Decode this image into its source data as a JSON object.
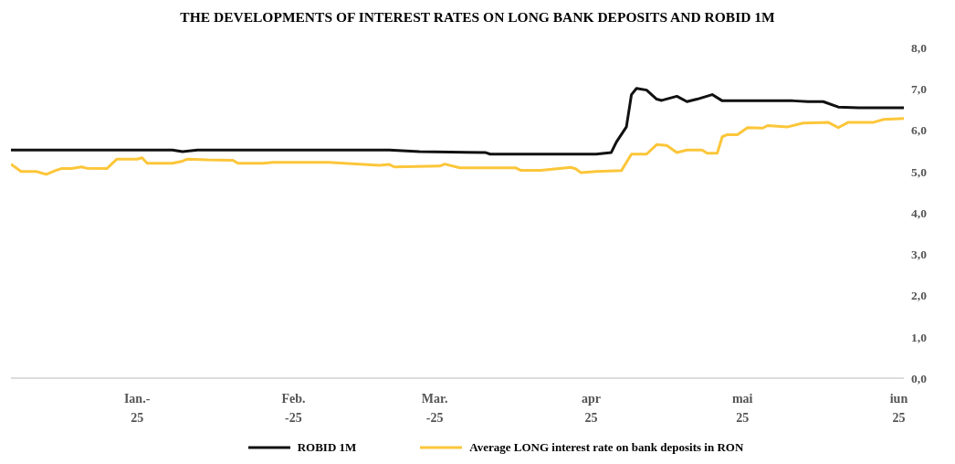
{
  "chart_data": {
    "type": "line",
    "title": "THE DEVELOPMENTS OF INTEREST RATES ON LONG BANK DEPOSITS AND ROBID 1M",
    "xlim": [
      "2024-12-07",
      "2025-06-02"
    ],
    "xticks": [
      {
        "value": "2025-01-01",
        "label": "Ian.-\n25"
      },
      {
        "value": "2025-02-01",
        "label": "Feb.\n-25"
      },
      {
        "value": "2025-03-01",
        "label": "Mar.\n-25"
      },
      {
        "value": "2025-04-01",
        "label": "apr\n25"
      },
      {
        "value": "2025-05-01",
        "label": "mai\n25"
      },
      {
        "value": "2025-06-01",
        "label": "iun\n25"
      }
    ],
    "ylim": [
      0,
      8
    ],
    "yticks": [
      {
        "value": 0,
        "label": "0,0"
      },
      {
        "value": 1,
        "label": "1,0"
      },
      {
        "value": 2,
        "label": "2,0"
      },
      {
        "value": 3,
        "label": "3,0"
      },
      {
        "value": 4,
        "label": "4,0"
      },
      {
        "value": 5,
        "label": "5,0"
      },
      {
        "value": 6,
        "label": "6,0"
      },
      {
        "value": 7,
        "label": "7,0"
      },
      {
        "value": 8,
        "label": "8,0"
      }
    ],
    "grid": false,
    "legend": "bottom",
    "marker": "none",
    "line_style": "solid",
    "series": [
      {
        "name": "ROBID 1M",
        "color": "#111111",
        "x": [
          "2024-12-07",
          "2025-01-08",
          "2025-01-10",
          "2025-01-13",
          "2025-02-20",
          "2025-02-26",
          "2025-03-11",
          "2025-03-12",
          "2025-04-02",
          "2025-04-05",
          "2025-04-06",
          "2025-04-08",
          "2025-04-09",
          "2025-04-10",
          "2025-04-12",
          "2025-04-14",
          "2025-04-15",
          "2025-04-18",
          "2025-04-20",
          "2025-04-22",
          "2025-04-25",
          "2025-04-27",
          "2025-05-11",
          "2025-05-14",
          "2025-05-17",
          "2025-05-20",
          "2025-05-24",
          "2025-06-02"
        ],
        "values": [
          5.52,
          5.52,
          5.48,
          5.52,
          5.52,
          5.48,
          5.46,
          5.42,
          5.42,
          5.46,
          5.71,
          6.08,
          6.86,
          7.01,
          6.97,
          6.75,
          6.72,
          6.82,
          6.69,
          6.75,
          6.86,
          6.71,
          6.71,
          6.69,
          6.69,
          6.56,
          6.54,
          6.54
        ]
      },
      {
        "name": "Average LONG interest rate on bank deposits in RON",
        "color": "#fcc63a",
        "x": [
          "2024-12-07",
          "2024-12-09",
          "2024-12-12",
          "2024-12-14",
          "2024-12-16",
          "2024-12-17",
          "2024-12-19",
          "2024-12-21",
          "2024-12-22",
          "2024-12-26",
          "2024-12-28",
          "2025-01-01",
          "2025-01-02",
          "2025-01-03",
          "2025-01-08",
          "2025-01-10",
          "2025-01-11",
          "2025-01-15",
          "2025-01-20",
          "2025-01-21",
          "2025-01-26",
          "2025-01-28",
          "2025-02-08",
          "2025-02-18",
          "2025-02-20",
          "2025-02-21",
          "2025-03-02",
          "2025-03-03",
          "2025-03-06",
          "2025-03-17",
          "2025-03-18",
          "2025-03-22",
          "2025-03-28",
          "2025-03-29",
          "2025-03-30",
          "2025-04-02",
          "2025-04-07",
          "2025-04-09",
          "2025-04-12",
          "2025-04-14",
          "2025-04-16",
          "2025-04-18",
          "2025-04-20",
          "2025-04-23",
          "2025-04-24",
          "2025-04-26",
          "2025-04-27",
          "2025-04-28",
          "2025-04-30",
          "2025-05-02",
          "2025-05-05",
          "2025-05-06",
          "2025-05-10",
          "2025-05-13",
          "2025-05-18",
          "2025-05-20",
          "2025-05-22",
          "2025-05-27",
          "2025-05-29",
          "2025-06-02"
        ],
        "values": [
          5.18,
          5.0,
          5.0,
          4.93,
          5.03,
          5.07,
          5.07,
          5.11,
          5.08,
          5.07,
          5.3,
          5.3,
          5.33,
          5.2,
          5.2,
          5.25,
          5.3,
          5.28,
          5.27,
          5.2,
          5.2,
          5.22,
          5.22,
          5.15,
          5.17,
          5.11,
          5.13,
          5.18,
          5.09,
          5.09,
          5.03,
          5.03,
          5.1,
          5.06,
          4.97,
          5.0,
          5.02,
          5.42,
          5.42,
          5.65,
          5.63,
          5.46,
          5.52,
          5.52,
          5.44,
          5.44,
          5.84,
          5.89,
          5.89,
          6.06,
          6.05,
          6.11,
          6.08,
          6.17,
          6.19,
          6.06,
          6.19,
          6.19,
          6.26,
          6.28
        ]
      }
    ]
  }
}
